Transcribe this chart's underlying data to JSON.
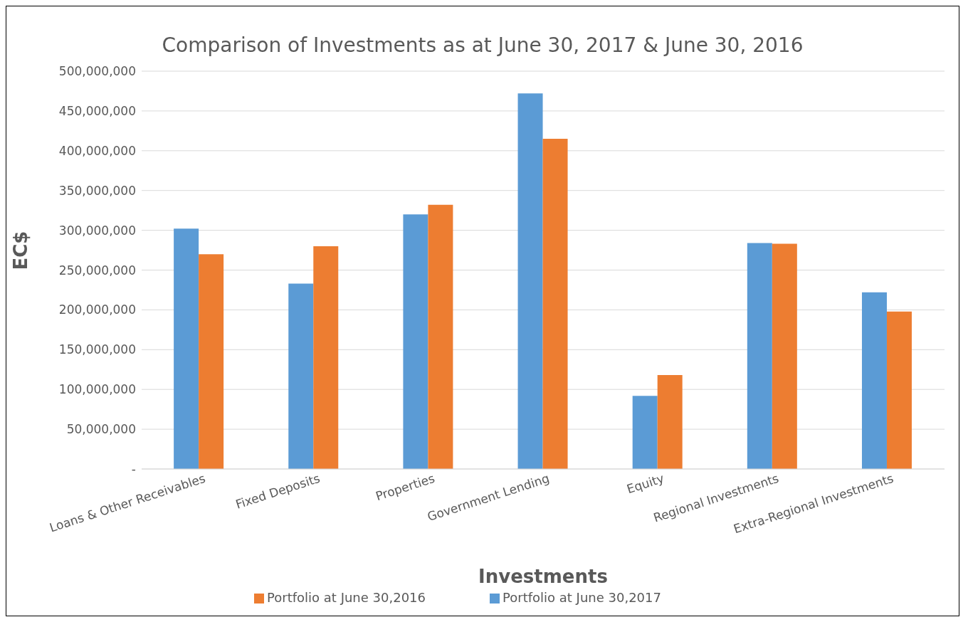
{
  "chart_data": {
    "type": "bar",
    "title": "Comparison of Investments as at June 30, 2017 & June 30, 2016",
    "xlabel": "Investments",
    "ylabel": "EC$",
    "categories": [
      "Loans & Other Receivables",
      "Fixed Deposits",
      "Properties",
      "Government Lending",
      "Equity",
      "Regional Investments",
      "Extra-Regional Investments"
    ],
    "series": [
      {
        "name": "Portfolio at June 30,2017",
        "color": "#5b9bd5",
        "values": [
          302000000,
          233000000,
          320000000,
          472000000,
          92000000,
          284000000,
          222000000
        ]
      },
      {
        "name": "Portfolio at June 30,2016",
        "color": "#ed7d31",
        "values": [
          270000000,
          280000000,
          332000000,
          415000000,
          118000000,
          283000000,
          198000000
        ]
      }
    ],
    "ylim": [
      0,
      500000000
    ],
    "yticks": [
      {
        "value": 0,
        "label": "-"
      },
      {
        "value": 50000000,
        "label": "50,000,000"
      },
      {
        "value": 100000000,
        "label": "100,000,000"
      },
      {
        "value": 150000000,
        "label": "150,000,000"
      },
      {
        "value": 200000000,
        "label": "200,000,000"
      },
      {
        "value": 250000000,
        "label": "250,000,000"
      },
      {
        "value": 300000000,
        "label": "300,000,000"
      },
      {
        "value": 350000000,
        "label": "350,000,000"
      },
      {
        "value": 400000000,
        "label": "400,000,000"
      },
      {
        "value": 450000000,
        "label": "450,000,000"
      },
      {
        "value": 500000000,
        "label": "500,000,000"
      }
    ],
    "grid": "y",
    "legend": "bottom"
  }
}
